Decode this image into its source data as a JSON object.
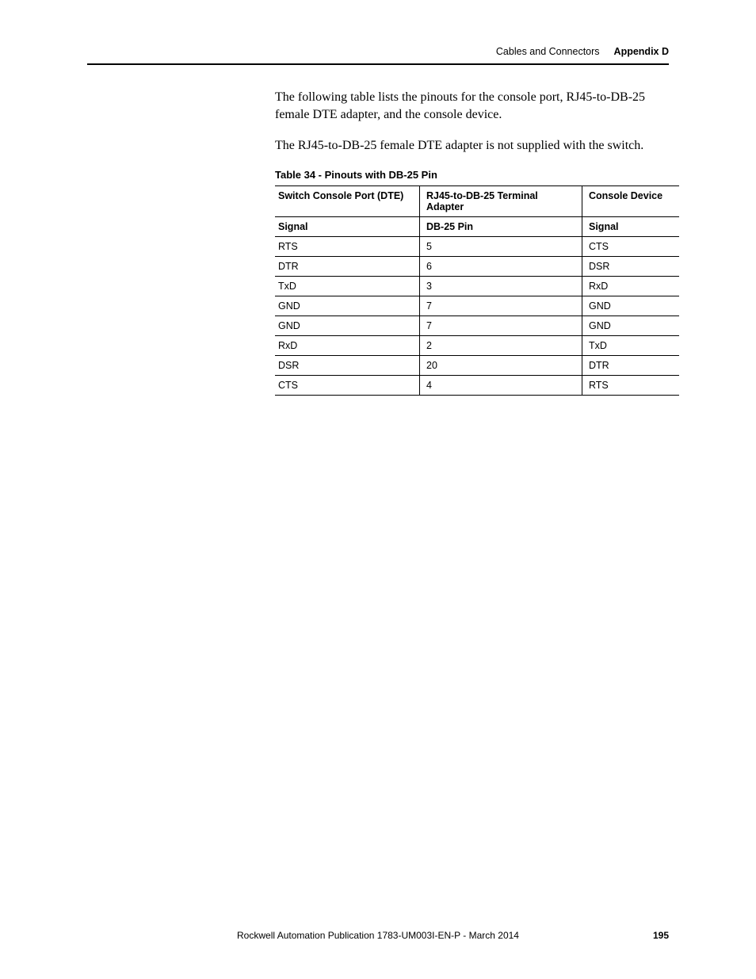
{
  "header": {
    "section": "Cables and Connectors",
    "appendix": "Appendix D"
  },
  "paragraphs": {
    "p1": "The following table lists the pinouts for the console port, RJ45-to-DB-25 female DTE adapter, and the console device.",
    "p2": "The RJ45-to-DB-25 female DTE adapter is not supplied with the switch."
  },
  "table": {
    "caption": "Table 34 - Pinouts with DB-25 Pin",
    "columns": {
      "c1_top": "Switch Console Port (DTE)",
      "c2_top": "RJ45-to-DB-25 Terminal Adapter",
      "c3_top": "Console Device",
      "c1_sub": "Signal",
      "c2_sub": "DB-25 Pin",
      "c3_sub": "Signal"
    },
    "rows": [
      {
        "c1": "RTS",
        "c2": "5",
        "c3": "CTS"
      },
      {
        "c1": "DTR",
        "c2": "6",
        "c3": "DSR"
      },
      {
        "c1": "TxD",
        "c2": "3",
        "c3": "RxD"
      },
      {
        "c1": "GND",
        "c2": "7",
        "c3": "GND"
      },
      {
        "c1": "GND",
        "c2": "7",
        "c3": "GND"
      },
      {
        "c1": "RxD",
        "c2": "2",
        "c3": "TxD"
      },
      {
        "c1": "DSR",
        "c2": "20",
        "c3": "DTR"
      },
      {
        "c1": "CTS",
        "c2": "4",
        "c3": "RTS"
      }
    ]
  },
  "footer": {
    "publication": "Rockwell Automation Publication 1783-UM003I-EN-P - March 2014",
    "page": "195"
  }
}
